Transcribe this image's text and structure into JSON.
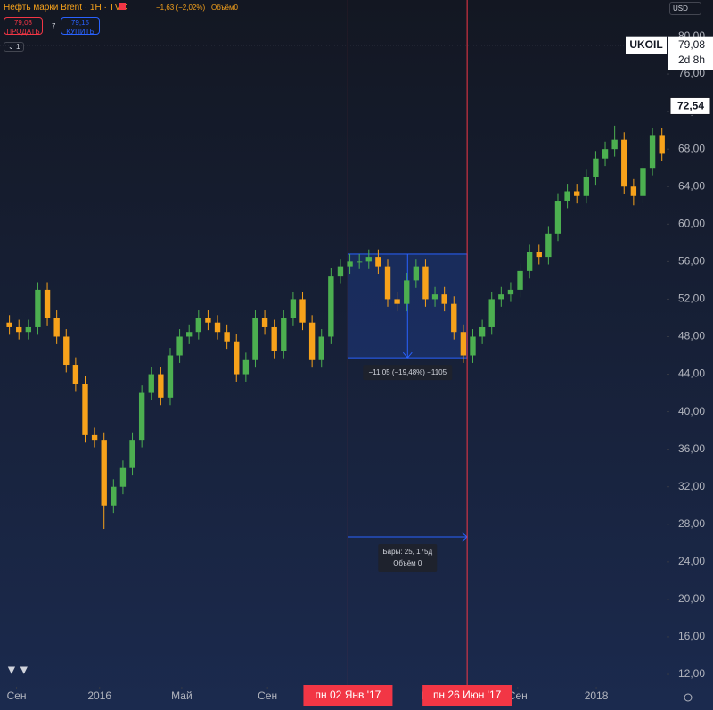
{
  "header": {
    "symbol": "Нефть марки Brent · 1Н · TVC",
    "change": "−1,63 (−2,02%)",
    "volume": "Объём0",
    "sell_price": "79,08",
    "sell_label": "ПРОДАТЬ",
    "spread": "7",
    "buy_price": "79,15",
    "buy_label": "КУПИТЬ",
    "currency": "USD",
    "pane_label": "1"
  },
  "chart_data": {
    "type": "candlestick",
    "up_color": "#4caf50",
    "down_color": "#f7a21b",
    "open": [
      49.5,
      49,
      48.5,
      49,
      53,
      50,
      48,
      45,
      43,
      37.5,
      37,
      30,
      32,
      34,
      37,
      42,
      44,
      41.5,
      46,
      48,
      48.5,
      50,
      49.5,
      48.5,
      47.5,
      44,
      45.5,
      50,
      49,
      46.5,
      50,
      52,
      49.5,
      45.5,
      48,
      54.5,
      55.5,
      56,
      56,
      56.5,
      55.5,
      52,
      51.5,
      54,
      55.5,
      52,
      52.5,
      51.5,
      48.5,
      46,
      48,
      49,
      52,
      52.5,
      53,
      55,
      57,
      56.5,
      59,
      62.5,
      63.5,
      63,
      65,
      67,
      68,
      69,
      64,
      63,
      66,
      69.5
    ],
    "high": [
      50.3,
      49.8,
      49.8,
      53.8,
      53.8,
      50.8,
      48.8,
      45.8,
      43.8,
      38.3,
      37.8,
      32.8,
      34.8,
      37.8,
      42.8,
      44.8,
      44.8,
      46.8,
      48.8,
      49.3,
      50.8,
      50.8,
      50.3,
      49.3,
      48.3,
      46.3,
      50.8,
      50.8,
      49.8,
      50.8,
      52.8,
      52.8,
      50.3,
      48.8,
      55.3,
      56.3,
      56.8,
      56.8,
      57.3,
      57.3,
      56.3,
      52.8,
      54.8,
      56.3,
      56.3,
      53.3,
      53.3,
      52.3,
      49.3,
      48.8,
      49.8,
      52.8,
      53.3,
      53.8,
      55.8,
      57.8,
      57.8,
      59.8,
      63.3,
      64.3,
      64.3,
      65.8,
      67.8,
      68.8,
      70.5,
      69.8,
      64.8,
      66.8,
      70.3,
      70.3
    ],
    "low": [
      48.2,
      47.7,
      47.7,
      48.2,
      49.2,
      47.2,
      44.2,
      42.2,
      36.7,
      36.2,
      27.5,
      29.2,
      31.2,
      33.2,
      36.2,
      41.2,
      40.7,
      40.7,
      45.2,
      47.2,
      47.7,
      48.7,
      47.7,
      46.7,
      43.2,
      43.2,
      44.7,
      48.2,
      45.7,
      45.7,
      49.2,
      48.7,
      44.7,
      44.7,
      47.2,
      53.7,
      54.7,
      55.2,
      55.2,
      54.7,
      51.2,
      50.7,
      50.7,
      53.2,
      51.2,
      51.2,
      50.7,
      47.7,
      45.2,
      45.2,
      47.2,
      48.2,
      51.2,
      51.7,
      52.2,
      54.2,
      55.7,
      55.7,
      58.2,
      61.7,
      62.2,
      62.2,
      64.2,
      66.2,
      67.2,
      63.2,
      62,
      62.2,
      65.2,
      66.7
    ],
    "close": [
      49,
      48.5,
      49,
      53,
      50,
      48,
      45,
      43,
      37.5,
      37,
      30,
      32,
      34,
      37,
      42,
      44,
      41.5,
      46,
      48,
      48.5,
      50,
      49.5,
      48.5,
      47.5,
      44,
      45.5,
      50,
      49,
      46.5,
      50,
      52,
      49.5,
      45.5,
      48,
      54.5,
      55.5,
      56,
      56,
      56.5,
      55.5,
      52,
      51.5,
      54,
      55.5,
      52,
      52.5,
      51.5,
      48.5,
      46,
      48,
      49,
      52,
      52.5,
      53,
      55,
      57,
      56.5,
      59,
      62.5,
      63.5,
      63,
      65,
      67,
      68,
      69,
      64,
      63,
      66,
      69.5,
      67.5
    ],
    "xlim": [
      -1,
      69.5
    ],
    "ylim": [
      10.67,
      83.9
    ],
    "xticks": [
      {
        "value": 0.75,
        "label": "Сен"
      },
      {
        "value": 9.53,
        "label": "2016"
      },
      {
        "value": 18.22,
        "label": "Май"
      },
      {
        "value": 27.29,
        "label": "Сен"
      },
      {
        "value": 44.67,
        "label": "Май"
      },
      {
        "value": 53.74,
        "label": "Сен"
      },
      {
        "value": 62.06,
        "label": "2018"
      }
    ],
    "yticks": [
      {
        "value": 12,
        "label": "12,00"
      },
      {
        "value": 16,
        "label": "16,00"
      },
      {
        "value": 20,
        "label": "20,00"
      },
      {
        "value": 24,
        "label": "24,00"
      },
      {
        "value": 28,
        "label": "28,00"
      },
      {
        "value": 32,
        "label": "32,00"
      },
      {
        "value": 36,
        "label": "36,00"
      },
      {
        "value": 40,
        "label": "40,00"
      },
      {
        "value": 44,
        "label": "44,00"
      },
      {
        "value": 48,
        "label": "48,00"
      },
      {
        "value": 52,
        "label": "52,00"
      },
      {
        "value": 56,
        "label": "56,00"
      },
      {
        "value": 60,
        "label": "60,00"
      },
      {
        "value": 64,
        "label": "64,00"
      },
      {
        "value": 68,
        "label": "68,00"
      },
      {
        "value": 72,
        "label": "72,00"
      },
      {
        "value": 76,
        "label": "76,00"
      },
      {
        "value": 80,
        "label": "80,00"
      }
    ],
    "last_price": {
      "value": 79.08,
      "label": "79,08",
      "symbol": "UKOIL",
      "countdown": "2d 8h"
    },
    "crosshair_price": {
      "value": 72.54,
      "label": "72,54"
    },
    "measure": {
      "start": 35.8,
      "end": 48.4,
      "high": 56.8,
      "low": 45.75,
      "label": "−11,05 (−19,48%) −1105",
      "bars_label": "Бары: 25, 175д",
      "volume_label": "Объём 0",
      "start_label": "пн 02 Янв '17",
      "end_label": "пн 26 Июн '17"
    }
  }
}
